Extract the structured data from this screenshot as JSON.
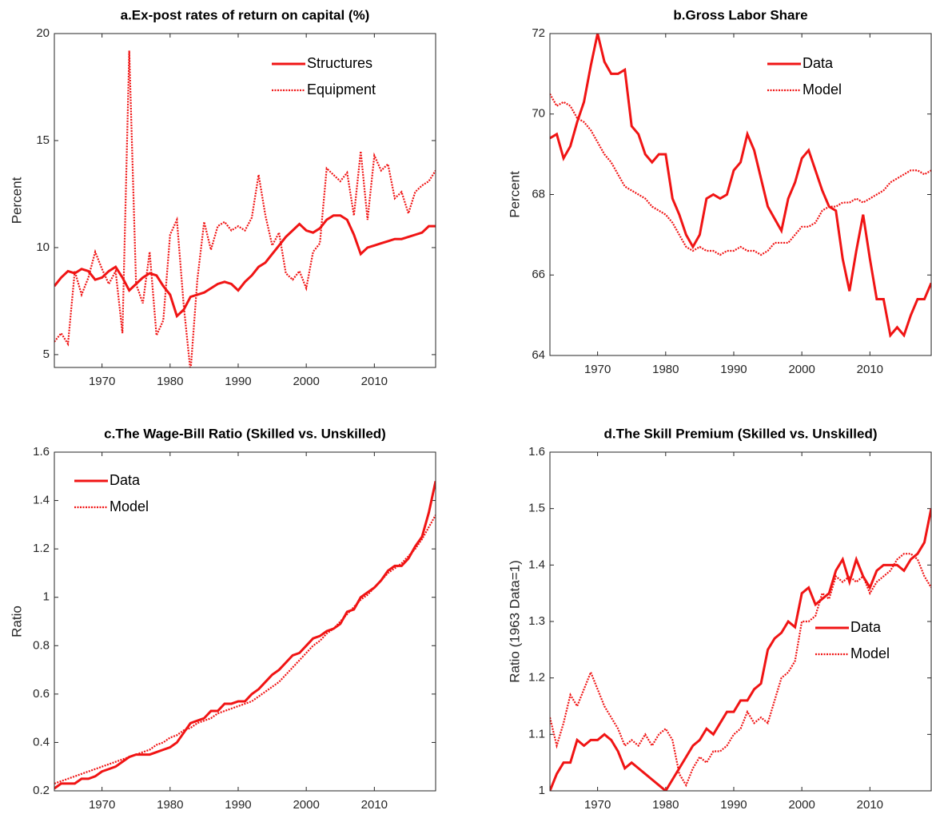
{
  "chart_data": [
    {
      "type": "line",
      "title": "a.Ex-post rates of return on capital (%)",
      "ylabel": "Percent",
      "x": [
        1963,
        1964,
        1965,
        1966,
        1967,
        1968,
        1969,
        1970,
        1971,
        1972,
        1973,
        1974,
        1975,
        1976,
        1977,
        1978,
        1979,
        1980,
        1981,
        1982,
        1983,
        1984,
        1985,
        1986,
        1987,
        1988,
        1989,
        1990,
        1991,
        1992,
        1993,
        1994,
        1995,
        1996,
        1997,
        1998,
        1999,
        2000,
        2001,
        2002,
        2003,
        2004,
        2005,
        2006,
        2007,
        2008,
        2009,
        2010,
        2011,
        2012,
        2013,
        2014,
        2015,
        2016,
        2017,
        2018,
        2019
      ],
      "series": [
        {
          "name": "Structures",
          "color": "#f01414",
          "dash": "solid",
          "values": [
            8.2,
            8.6,
            8.9,
            8.8,
            9.0,
            8.9,
            8.5,
            8.6,
            8.9,
            9.1,
            8.6,
            8.0,
            8.3,
            8.6,
            8.8,
            8.7,
            8.2,
            7.8,
            6.8,
            7.1,
            7.7,
            7.8,
            7.9,
            8.1,
            8.3,
            8.4,
            8.3,
            8.0,
            8.4,
            8.7,
            9.1,
            9.3,
            9.7,
            10.1,
            10.5,
            10.8,
            11.1,
            10.8,
            10.7,
            10.9,
            11.3,
            11.5,
            11.5,
            11.3,
            10.6,
            9.7,
            10.0,
            10.1,
            10.2,
            10.3,
            10.4,
            10.4,
            10.5,
            10.6,
            10.7,
            11.0,
            11.0
          ]
        },
        {
          "name": "Equipment",
          "color": "#f01414",
          "dash": "dotted",
          "values": [
            5.6,
            6.0,
            5.5,
            8.9,
            7.8,
            8.6,
            9.8,
            9.0,
            8.3,
            8.9,
            6.0,
            19.2,
            8.3,
            7.4,
            9.8,
            5.9,
            6.6,
            10.6,
            11.3,
            7.3,
            4.2,
            8.5,
            11.2,
            9.9,
            11.0,
            11.2,
            10.8,
            11.0,
            10.8,
            11.4,
            13.4,
            11.5,
            10.1,
            10.7,
            8.8,
            8.5,
            8.9,
            8.1,
            9.8,
            10.2,
            13.7,
            13.4,
            13.1,
            13.5,
            11.5,
            14.5,
            11.3,
            14.3,
            13.6,
            13.9,
            12.3,
            12.6,
            11.6,
            12.6,
            12.9,
            13.1,
            13.6
          ]
        }
      ],
      "xlim": [
        1963,
        2019
      ],
      "xticks": [
        1970,
        1980,
        1990,
        2000,
        2010
      ],
      "ylim": [
        4.4,
        20
      ],
      "yticks": [
        5,
        10,
        15,
        20
      ],
      "legend": "northeast"
    },
    {
      "type": "line",
      "title": "b.Gross Labor Share",
      "ylabel": "Percent",
      "x": [
        1963,
        1964,
        1965,
        1966,
        1967,
        1968,
        1969,
        1970,
        1971,
        1972,
        1973,
        1974,
        1975,
        1976,
        1977,
        1978,
        1979,
        1980,
        1981,
        1982,
        1983,
        1984,
        1985,
        1986,
        1987,
        1988,
        1989,
        1990,
        1991,
        1992,
        1993,
        1994,
        1995,
        1996,
        1997,
        1998,
        1999,
        2000,
        2001,
        2002,
        2003,
        2004,
        2005,
        2006,
        2007,
        2008,
        2009,
        2010,
        2011,
        2012,
        2013,
        2014,
        2015,
        2016,
        2017,
        2018,
        2019
      ],
      "series": [
        {
          "name": "Data",
          "color": "#f01414",
          "dash": "solid",
          "values": [
            69.4,
            69.5,
            68.9,
            69.2,
            69.8,
            70.3,
            71.2,
            72.0,
            71.3,
            71.0,
            71.0,
            71.1,
            69.7,
            69.5,
            69.0,
            68.8,
            69.0,
            69.0,
            67.9,
            67.5,
            67.0,
            66.7,
            67.0,
            67.9,
            68.0,
            67.9,
            68.0,
            68.6,
            68.8,
            69.5,
            69.1,
            68.4,
            67.7,
            67.4,
            67.1,
            67.9,
            68.3,
            68.9,
            69.1,
            68.6,
            68.1,
            67.7,
            67.6,
            66.4,
            65.6,
            66.6,
            67.5,
            66.4,
            65.4,
            65.4,
            64.5,
            64.7,
            64.5,
            65.0,
            65.4,
            65.4,
            65.8
          ]
        },
        {
          "name": "Model",
          "color": "#f01414",
          "dash": "dotted",
          "values": [
            70.5,
            70.2,
            70.3,
            70.2,
            69.9,
            69.8,
            69.6,
            69.3,
            69.0,
            68.8,
            68.5,
            68.2,
            68.1,
            68.0,
            67.9,
            67.7,
            67.6,
            67.5,
            67.3,
            67.0,
            66.7,
            66.6,
            66.7,
            66.6,
            66.6,
            66.5,
            66.6,
            66.6,
            66.7,
            66.6,
            66.6,
            66.5,
            66.6,
            66.8,
            66.8,
            66.8,
            67.0,
            67.2,
            67.2,
            67.3,
            67.6,
            67.7,
            67.7,
            67.8,
            67.8,
            67.9,
            67.8,
            67.9,
            68.0,
            68.1,
            68.3,
            68.4,
            68.5,
            68.6,
            68.6,
            68.5,
            68.6
          ]
        }
      ],
      "xlim": [
        1963,
        2019
      ],
      "xticks": [
        1970,
        1980,
        1990,
        2000,
        2010
      ],
      "ylim": [
        64,
        72
      ],
      "yticks": [
        64,
        66,
        68,
        70,
        72
      ],
      "legend": "northeast"
    },
    {
      "type": "line",
      "title": "c.The Wage-Bill Ratio (Skilled vs. Unskilled)",
      "ylabel": "Ratio",
      "x": [
        1963,
        1964,
        1965,
        1966,
        1967,
        1968,
        1969,
        1970,
        1971,
        1972,
        1973,
        1974,
        1975,
        1976,
        1977,
        1978,
        1979,
        1980,
        1981,
        1982,
        1983,
        1984,
        1985,
        1986,
        1987,
        1988,
        1989,
        1990,
        1991,
        1992,
        1993,
        1994,
        1995,
        1996,
        1997,
        1998,
        1999,
        2000,
        2001,
        2002,
        2003,
        2004,
        2005,
        2006,
        2007,
        2008,
        2009,
        2010,
        2011,
        2012,
        2013,
        2014,
        2015,
        2016,
        2017,
        2018,
        2019
      ],
      "series": [
        {
          "name": "Data",
          "color": "#f01414",
          "dash": "solid",
          "values": [
            0.21,
            0.23,
            0.23,
            0.23,
            0.25,
            0.25,
            0.26,
            0.28,
            0.29,
            0.3,
            0.32,
            0.34,
            0.35,
            0.35,
            0.35,
            0.36,
            0.37,
            0.38,
            0.4,
            0.44,
            0.48,
            0.49,
            0.5,
            0.53,
            0.53,
            0.56,
            0.56,
            0.57,
            0.57,
            0.6,
            0.62,
            0.65,
            0.68,
            0.7,
            0.73,
            0.76,
            0.77,
            0.8,
            0.83,
            0.84,
            0.86,
            0.87,
            0.89,
            0.94,
            0.95,
            1.0,
            1.02,
            1.04,
            1.07,
            1.11,
            1.13,
            1.13,
            1.16,
            1.21,
            1.25,
            1.35,
            1.48
          ]
        },
        {
          "name": "Model",
          "color": "#f01414",
          "dash": "dotted",
          "values": [
            0.23,
            0.24,
            0.25,
            0.26,
            0.27,
            0.28,
            0.29,
            0.3,
            0.31,
            0.32,
            0.33,
            0.34,
            0.35,
            0.36,
            0.37,
            0.39,
            0.4,
            0.42,
            0.43,
            0.45,
            0.46,
            0.48,
            0.49,
            0.5,
            0.52,
            0.53,
            0.54,
            0.55,
            0.56,
            0.57,
            0.59,
            0.61,
            0.63,
            0.65,
            0.68,
            0.71,
            0.74,
            0.77,
            0.8,
            0.82,
            0.85,
            0.87,
            0.9,
            0.93,
            0.96,
            0.99,
            1.01,
            1.04,
            1.07,
            1.1,
            1.12,
            1.14,
            1.17,
            1.2,
            1.24,
            1.29,
            1.34
          ]
        }
      ],
      "xlim": [
        1963,
        2019
      ],
      "xticks": [
        1970,
        1980,
        1990,
        2000,
        2010
      ],
      "ylim": [
        0.2,
        1.6
      ],
      "yticks": [
        0.2,
        0.4,
        0.6,
        0.8,
        1,
        1.2,
        1.4,
        1.6
      ],
      "legend": "northwest"
    },
    {
      "type": "line",
      "title": "d.The Skill Premium (Skilled vs. Unskilled)",
      "ylabel": "Ratio (1963 Data=1)",
      "x": [
        1963,
        1964,
        1965,
        1966,
        1967,
        1968,
        1969,
        1970,
        1971,
        1972,
        1973,
        1974,
        1975,
        1976,
        1977,
        1978,
        1979,
        1980,
        1981,
        1982,
        1983,
        1984,
        1985,
        1986,
        1987,
        1988,
        1989,
        1990,
        1991,
        1992,
        1993,
        1994,
        1995,
        1996,
        1997,
        1998,
        1999,
        2000,
        2001,
        2002,
        2003,
        2004,
        2005,
        2006,
        2007,
        2008,
        2009,
        2010,
        2011,
        2012,
        2013,
        2014,
        2015,
        2016,
        2017,
        2018,
        2019
      ],
      "series": [
        {
          "name": "Data",
          "color": "#f01414",
          "dash": "solid",
          "values": [
            1.0,
            1.03,
            1.05,
            1.05,
            1.09,
            1.08,
            1.09,
            1.09,
            1.1,
            1.09,
            1.07,
            1.04,
            1.05,
            1.04,
            1.03,
            1.02,
            1.01,
            1.0,
            1.02,
            1.04,
            1.06,
            1.08,
            1.09,
            1.11,
            1.1,
            1.12,
            1.14,
            1.14,
            1.16,
            1.16,
            1.18,
            1.19,
            1.25,
            1.27,
            1.28,
            1.3,
            1.29,
            1.35,
            1.36,
            1.33,
            1.34,
            1.35,
            1.39,
            1.41,
            1.37,
            1.41,
            1.38,
            1.36,
            1.39,
            1.4,
            1.4,
            1.4,
            1.39,
            1.41,
            1.42,
            1.44,
            1.5
          ]
        },
        {
          "name": "Model",
          "color": "#f01414",
          "dash": "dotted",
          "values": [
            1.13,
            1.08,
            1.12,
            1.17,
            1.15,
            1.18,
            1.21,
            1.18,
            1.15,
            1.13,
            1.11,
            1.08,
            1.09,
            1.08,
            1.1,
            1.08,
            1.1,
            1.11,
            1.09,
            1.03,
            1.01,
            1.04,
            1.06,
            1.05,
            1.07,
            1.07,
            1.08,
            1.1,
            1.11,
            1.14,
            1.12,
            1.13,
            1.12,
            1.16,
            1.2,
            1.21,
            1.23,
            1.3,
            1.3,
            1.31,
            1.35,
            1.34,
            1.38,
            1.37,
            1.38,
            1.37,
            1.38,
            1.35,
            1.37,
            1.38,
            1.39,
            1.41,
            1.42,
            1.42,
            1.41,
            1.38,
            1.36
          ]
        }
      ],
      "xlim": [
        1963,
        2019
      ],
      "xticks": [
        1970,
        1980,
        1990,
        2000,
        2010
      ],
      "ylim": [
        1,
        1.6
      ],
      "yticks": [
        1,
        1.1,
        1.2,
        1.3,
        1.4,
        1.5,
        1.6
      ],
      "legend": "east"
    }
  ]
}
